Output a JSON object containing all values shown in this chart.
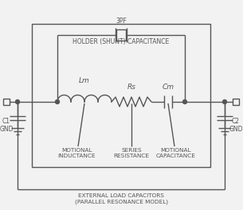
{
  "fig_width": 3.05,
  "fig_height": 2.64,
  "dpi": 100,
  "bg_color": "#f2f2f2",
  "line_color": "#555555",
  "labels": {
    "holder": "HOLDER (SHUNT) CAPACITANCE",
    "3pf": "3PF",
    "lm": "Lm",
    "rs": "Rs",
    "cm": "Cm",
    "motional_ind": "MOTIONAL\nINDUCTANCE",
    "series_res": "SERIES\nRESISTANCE",
    "motional_cap": "MOTIONAL\nCAPACITANCE",
    "c1": "C1\nGND",
    "c2": "C2\nGND",
    "external": "EXTERNAL LOAD CAPACITORS\n(PARALLEL RESONANCE MODEL)"
  },
  "font_size_tiny": 5.5,
  "font_size_label": 5.2,
  "font_size_comp": 6.5
}
